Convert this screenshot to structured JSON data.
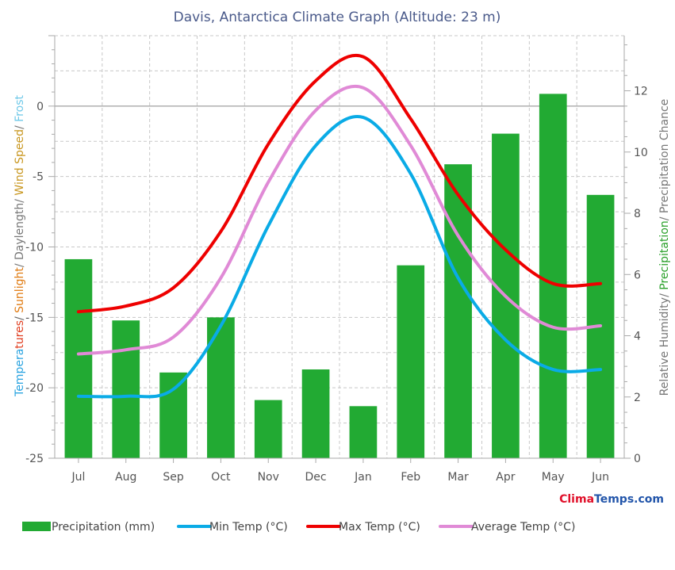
{
  "chart_data": {
    "type": "bar",
    "title": "Davis, Antarctica Climate Graph (Altitude: 23 m)",
    "categories": [
      "Jul",
      "Aug",
      "Sep",
      "Oct",
      "Nov",
      "Dec",
      "Jan",
      "Feb",
      "Mar",
      "Apr",
      "May",
      "Jun"
    ],
    "left_axis": {
      "label_parts": [
        {
          "text": "Tempera",
          "color": "#29a3e0"
        },
        {
          "text": "tures",
          "color": "#e03c1e"
        },
        {
          "text": "/ ",
          "color": "#666666"
        },
        {
          "text": "Sunlight",
          "color": "#e07a10"
        },
        {
          "text": "/ Daylength/ ",
          "color": "#777777"
        },
        {
          "text": "Wind Speed",
          "color": "#c8961e"
        },
        {
          "text": "/ ",
          "color": "#777777"
        },
        {
          "text": "Frost",
          "color": "#6ec8e8"
        }
      ],
      "ylim": [
        -25,
        5
      ],
      "ticks": [
        0,
        -5,
        -10,
        -15,
        -20,
        -25
      ]
    },
    "right_axis": {
      "label_parts": [
        {
          "text": "Relative Humidity/ ",
          "color": "#777777"
        },
        {
          "text": "Precipitation",
          "color": "#2aa02a"
        },
        {
          "text": "/ Precipitation Chance",
          "color": "#777777"
        }
      ],
      "ylim": [
        0,
        13.8
      ],
      "ticks": [
        0,
        2,
        4,
        6,
        8,
        10,
        12
      ]
    },
    "series": [
      {
        "name": "Precipitation (mm)",
        "kind": "bar",
        "axis": "right",
        "color": "#22aa33",
        "values": [
          6.5,
          4.5,
          2.8,
          4.6,
          1.9,
          2.9,
          1.7,
          6.3,
          9.6,
          10.6,
          11.9,
          8.6
        ]
      },
      {
        "name": "Min Temp (°C)",
        "kind": "line",
        "axis": "left",
        "color": "#0aabe6",
        "values": [
          -20.6,
          -20.6,
          -20.1,
          -15.6,
          -8.5,
          -2.8,
          -0.8,
          -4.8,
          -12.2,
          -16.6,
          -18.7,
          -18.7
        ]
      },
      {
        "name": "Max Temp (°C)",
        "kind": "line",
        "axis": "left",
        "color": "#ee0000",
        "values": [
          -14.6,
          -14.2,
          -12.9,
          -8.9,
          -2.7,
          1.8,
          3.5,
          -0.9,
          -6.3,
          -10.2,
          -12.6,
          -12.6
        ]
      },
      {
        "name": "Average Temp (°C)",
        "kind": "line",
        "axis": "left",
        "color": "#e08ad6",
        "values": [
          -17.6,
          -17.3,
          -16.4,
          -12.2,
          -5.4,
          -0.3,
          1.3,
          -2.8,
          -9.2,
          -13.5,
          -15.7,
          -15.6
        ]
      }
    ],
    "grid": true,
    "legend": "bottom"
  },
  "brand": {
    "part1": "Clima",
    "part2": "Temps",
    "part3": ".com",
    "color1": "#e0102a",
    "color2": "#2255aa"
  }
}
